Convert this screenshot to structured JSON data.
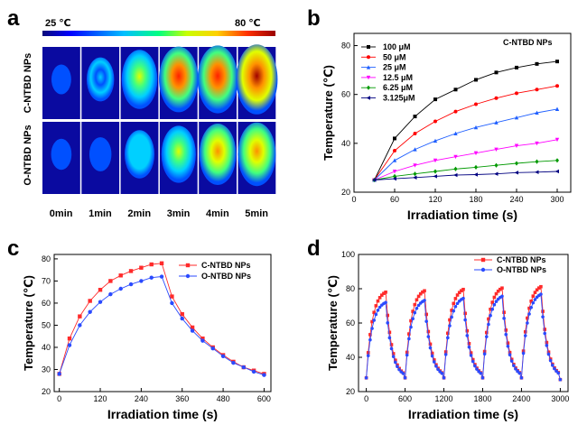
{
  "panel_a": {
    "letter": "a",
    "colorbar_min": "25 ℃",
    "colorbar_max": "80 ℃",
    "row_labels": [
      "C-NTBD NPs",
      "O-NTBD NPs"
    ],
    "time_labels": [
      "0min",
      "1min",
      "2min",
      "3min",
      "4min",
      "5min"
    ],
    "intensity": [
      [
        0.02,
        0.35,
        0.7,
        0.85,
        0.9,
        0.95
      ],
      [
        0.05,
        0.12,
        0.45,
        0.65,
        0.75,
        0.8
      ]
    ]
  },
  "panel_b_letter": "b",
  "panel_c_letter": "c",
  "panel_d_letter": "d",
  "chart_data": [
    {
      "type": "line",
      "panel": "b",
      "legend_title": "C-NTBD NPs",
      "xlabel": "Irradiation time (s)",
      "ylabel": "Temperature (℃)",
      "xlim": [
        0,
        320
      ],
      "ylim": [
        20,
        85
      ],
      "xticks": [
        0,
        60,
        120,
        180,
        240,
        300
      ],
      "yticks": [
        20,
        40,
        60,
        80
      ],
      "legend_position": "top-left",
      "series": [
        {
          "name": "100 μM",
          "color": "#000000",
          "marker": "square",
          "x": [
            30,
            60,
            90,
            120,
            150,
            180,
            210,
            240,
            270,
            300
          ],
          "y": [
            25,
            42,
            51,
            58,
            62,
            66,
            69,
            71,
            72.5,
            73.5
          ]
        },
        {
          "name": "50 μM",
          "color": "#ff0000",
          "marker": "circle",
          "x": [
            30,
            60,
            90,
            120,
            150,
            180,
            210,
            240,
            270,
            300
          ],
          "y": [
            25,
            37,
            44,
            49,
            53,
            56,
            58.5,
            60.5,
            62,
            63.5
          ]
        },
        {
          "name": "25 μM",
          "color": "#1f5fff",
          "marker": "triangle-up",
          "x": [
            30,
            60,
            90,
            120,
            150,
            180,
            210,
            240,
            270,
            300
          ],
          "y": [
            25,
            33,
            37.5,
            41,
            44,
            46.5,
            48.5,
            50.5,
            52.5,
            54
          ]
        },
        {
          "name": "12.5 μM",
          "color": "#ff00ff",
          "marker": "triangle-down",
          "x": [
            30,
            60,
            90,
            120,
            150,
            180,
            210,
            240,
            270,
            300
          ],
          "y": [
            25,
            28.5,
            31,
            33,
            34.5,
            36,
            37.5,
            39,
            40,
            41.5
          ]
        },
        {
          "name": "6.25 μM",
          "color": "#009900",
          "marker": "diamond",
          "x": [
            30,
            60,
            90,
            120,
            150,
            180,
            210,
            240,
            270,
            300
          ],
          "y": [
            25,
            26.5,
            27.5,
            28.5,
            29.5,
            30.2,
            31,
            31.8,
            32.5,
            33
          ]
        },
        {
          "name": "3.125μM",
          "color": "#000080",
          "marker": "triangle-left",
          "x": [
            30,
            60,
            90,
            120,
            150,
            180,
            210,
            240,
            270,
            300
          ],
          "y": [
            25,
            25.5,
            26,
            26.5,
            27,
            27.2,
            27.5,
            28,
            28.2,
            28.5
          ]
        }
      ]
    },
    {
      "type": "line",
      "panel": "c",
      "xlabel": "Irradiation time (s)",
      "ylabel": "Temperature (℃)",
      "xlim": [
        -15,
        620
      ],
      "ylim": [
        20,
        82
      ],
      "xticks": [
        0,
        120,
        240,
        360,
        480,
        600
      ],
      "yticks": [
        20,
        30,
        40,
        50,
        60,
        70,
        80
      ],
      "legend_position": "top-right",
      "series": [
        {
          "name": "C-NTBD NPs",
          "color": "#ff2a2a",
          "marker": "square",
          "x": [
            0,
            30,
            60,
            90,
            120,
            150,
            180,
            210,
            240,
            270,
            300,
            330,
            360,
            390,
            420,
            450,
            480,
            510,
            540,
            570,
            600
          ],
          "y": [
            28,
            44,
            54,
            61,
            66,
            70,
            72.5,
            74.5,
            76,
            77.5,
            78,
            63,
            55,
            49,
            44,
            40,
            36.5,
            33.5,
            31,
            29.5,
            28
          ]
        },
        {
          "name": "O-NTBD NPs",
          "color": "#2a4aff",
          "marker": "circle",
          "x": [
            0,
            30,
            60,
            90,
            120,
            150,
            180,
            210,
            240,
            270,
            300,
            330,
            360,
            390,
            420,
            450,
            480,
            510,
            540,
            570,
            600
          ],
          "y": [
            28,
            41,
            50,
            56,
            60.5,
            64,
            66.5,
            68.5,
            70,
            71.5,
            72,
            60,
            53,
            47.5,
            43,
            39.5,
            36,
            33,
            31,
            29,
            27.5
          ]
        }
      ]
    },
    {
      "type": "line",
      "panel": "d",
      "xlabel": "Irradiation time (s)",
      "ylabel": "Temperature (℃)",
      "xlim": [
        -120,
        3120
      ],
      "ylim": [
        20,
        100
      ],
      "xticks": [
        0,
        600,
        1200,
        1800,
        2400,
        3000
      ],
      "yticks": [
        20,
        40,
        60,
        80,
        100
      ],
      "legend_position": "top-right",
      "cycles": 5,
      "cycle_period_s": 600,
      "heating_duration_s": 300,
      "series": [
        {
          "name": "C-NTBD NPs",
          "color": "#ff2a2a",
          "marker": "square",
          "start": 28,
          "peak": 78,
          "peak_growth": 0.8
        },
        {
          "name": "O-NTBD NPs",
          "color": "#2a4aff",
          "marker": "circle",
          "start": 28,
          "peak": 72,
          "peak_growth": 1.2
        }
      ]
    }
  ]
}
